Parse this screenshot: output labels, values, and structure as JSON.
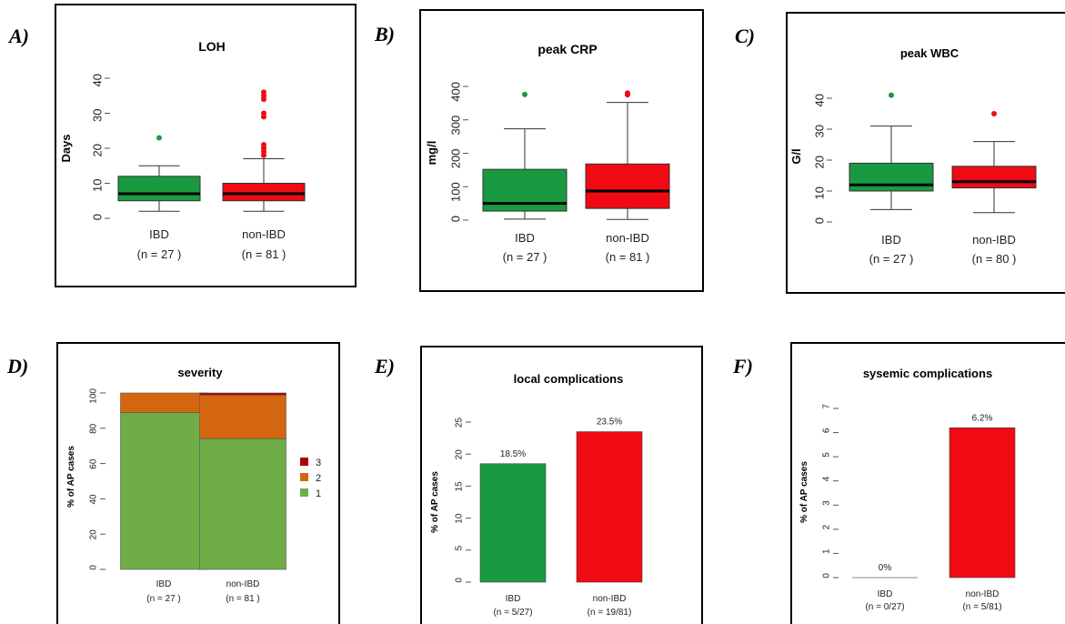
{
  "panel_letters": [
    "A)",
    "B)",
    "C)",
    "D)",
    "E)",
    "F)"
  ],
  "colors": {
    "green": "#1a9a40",
    "red": "#ef0a14",
    "sev1": "#70ad47",
    "sev2": "#d4660f",
    "sev3": "#b00000"
  },
  "chart_data": [
    {
      "type": "box",
      "title": "LOH",
      "ylabel": "Days",
      "ylim": [
        0,
        40
      ],
      "yticks": [
        "0",
        "10",
        "20",
        "30",
        "40"
      ],
      "categories": [
        "IBD",
        "non-IBD"
      ],
      "n_labels": [
        "(n = 27 )",
        "(n = 81 )"
      ],
      "boxes": [
        {
          "whisker_low": 2,
          "q1": 5,
          "median": 7,
          "q3": 12,
          "whisker_high": 15,
          "outliers": [
            23
          ]
        },
        {
          "whisker_low": 2,
          "q1": 5,
          "median": 7,
          "q3": 10,
          "whisker_high": 17,
          "outliers": [
            18,
            19,
            20,
            21,
            29,
            30,
            34,
            35,
            36
          ]
        }
      ]
    },
    {
      "type": "box",
      "title": "peak CRP",
      "ylabel": "mg/l",
      "ylim": [
        0,
        400
      ],
      "yticks": [
        "0",
        "100",
        "200",
        "300",
        "400"
      ],
      "categories": [
        "IBD",
        "non-IBD"
      ],
      "n_labels": [
        "(n = 27 )",
        "(n = 81 )"
      ],
      "boxes": [
        {
          "whisker_low": 3,
          "q1": 27,
          "median": 50,
          "q3": 152,
          "whisker_high": 273,
          "outliers": [
            376
          ]
        },
        {
          "whisker_low": 2,
          "q1": 35,
          "median": 87,
          "q3": 168,
          "whisker_high": 352,
          "outliers": [
            375,
            380
          ]
        }
      ]
    },
    {
      "type": "box",
      "title": "peak WBC",
      "ylabel": "G/l",
      "ylim": [
        0,
        40
      ],
      "yticks": [
        "0",
        "10",
        "20",
        "30",
        "40"
      ],
      "categories": [
        "IBD",
        "non-IBD"
      ],
      "n_labels": [
        "(n = 27 )",
        "(n = 80 )"
      ],
      "boxes": [
        {
          "whisker_low": 4,
          "q1": 10,
          "median": 12,
          "q3": 19,
          "whisker_high": 31,
          "outliers": [
            41
          ]
        },
        {
          "whisker_low": 3,
          "q1": 11,
          "median": 13,
          "q3": 18,
          "whisker_high": 26,
          "outliers": [
            35
          ]
        }
      ]
    },
    {
      "type": "stacked-bar",
      "title": "severity",
      "ylabel": "% of AP cases",
      "ylim": [
        0,
        100
      ],
      "yticks": [
        "0",
        "20",
        "40",
        "60",
        "80",
        "100"
      ],
      "categories": [
        "IBD",
        "non-IBD"
      ],
      "n_labels": [
        "(n = 27 )",
        "(n = 81 )"
      ],
      "series": [
        {
          "name": "1",
          "values": [
            88.9,
            74.1
          ]
        },
        {
          "name": "2",
          "values": [
            11.1,
            24.7
          ]
        },
        {
          "name": "3",
          "values": [
            0,
            1.2
          ]
        }
      ],
      "legend_position": "right"
    },
    {
      "type": "bar",
      "title": "local complications",
      "ylabel": "% of AP cases",
      "ylim": [
        0,
        25
      ],
      "yticks": [
        "0",
        "5",
        "10",
        "15",
        "20",
        "25"
      ],
      "categories": [
        "IBD",
        "non-IBD"
      ],
      "n_labels": [
        "(n = 5/27)",
        "(n = 19/81)"
      ],
      "values": [
        18.5,
        23.5
      ],
      "value_labels": [
        "18.5%",
        "23.5%"
      ]
    },
    {
      "type": "bar",
      "title": "sysemic complications",
      "ylabel": "% of AP cases",
      "ylim": [
        0,
        7
      ],
      "yticks": [
        "0",
        "1",
        "2",
        "3",
        "4",
        "5",
        "6",
        "7"
      ],
      "categories": [
        "IBD",
        "non-IBD"
      ],
      "n_labels": [
        "(n = 0/27)",
        "(n = 5/81)"
      ],
      "values": [
        0,
        6.2
      ],
      "value_labels": [
        "0%",
        "6.2%"
      ]
    }
  ]
}
